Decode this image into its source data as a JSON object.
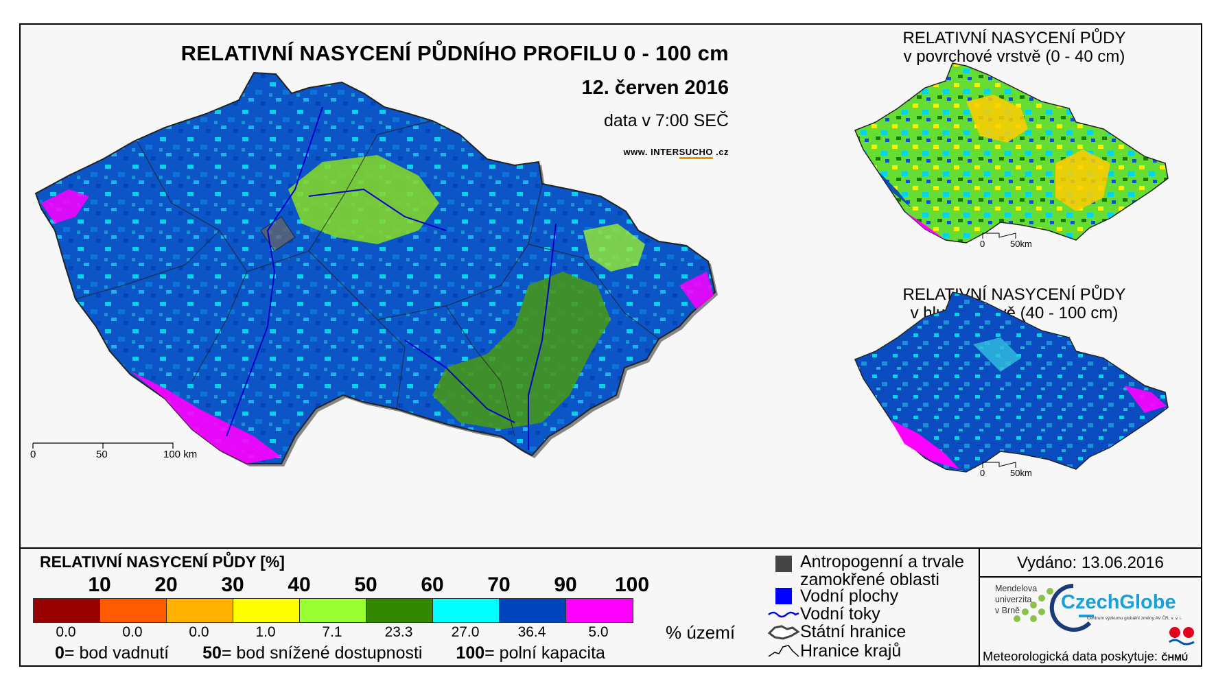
{
  "header": {
    "title": "RELATIVNÍ NASYCENÍ PŮDNÍHO PROFILU 0 - 100 cm",
    "date": "12. červen 2016",
    "time": "data v 7:00 SEČ",
    "website_prefix": "www. INTER",
    "website_highlight": "SUCHO",
    "website_suffix": " .cz"
  },
  "insets": {
    "surface": {
      "title_line1": "RELATIVNÍ NASYCENÍ PŮDY",
      "title_line2": "v povrchové vrstvě (0 - 40 cm)"
    },
    "deep": {
      "title_line1": "RELATIVNÍ NASYCENÍ PŮDY",
      "title_line2": "v hlubší vrstvě (40 - 100 cm)"
    },
    "scale_0": "0",
    "scale_50": "50km"
  },
  "main_scale": {
    "zero": "0",
    "fifty": "50",
    "hundred": "100 km"
  },
  "legend": {
    "title": "RELATIVNÍ NASYCENÍ PŮDY [%]",
    "ticks": [
      "10",
      "20",
      "30",
      "40",
      "50",
      "60",
      "70",
      "90",
      "100"
    ],
    "colors": [
      "#990000",
      "#ff5a00",
      "#ffb000",
      "#ffff00",
      "#99ff33",
      "#338800",
      "#00ffff",
      "#0044bb",
      "#ff00ff"
    ],
    "area_share": [
      "0.0",
      "0.0",
      "0.0",
      "1.0",
      "7.1",
      "23.3",
      "27.0",
      "36.4",
      "5.0"
    ],
    "area_unit": "% území",
    "notes": [
      {
        "value": "0",
        "text": "= bod vadnutí"
      },
      {
        "value": "50",
        "text": "= bod snížené dostupnosti"
      },
      {
        "value": "100",
        "text": "= polní kapacita"
      }
    ]
  },
  "symbols": {
    "anthropogenic_line1": "Antropogenní a trvale",
    "anthropogenic_line2": "zamokřené oblasti",
    "water_bodies": "Vodní plochy",
    "rivers": "Vodní toky",
    "state_border": "Státní hranice",
    "regions": "Hranice krajů"
  },
  "issued": "Vydáno: 13.06.2016",
  "logos": {
    "mendel_lines": [
      "Mendelova",
      "univerzita",
      "v Brně"
    ],
    "czechglobe": "CzechGlobe",
    "czechglobe_sub": "Centrum výzkumu globální změny AV ČR, v. v. i.",
    "meteo_prefix": "Meteorologická data poskytuje: ",
    "chmu": "ČHMÚ"
  }
}
